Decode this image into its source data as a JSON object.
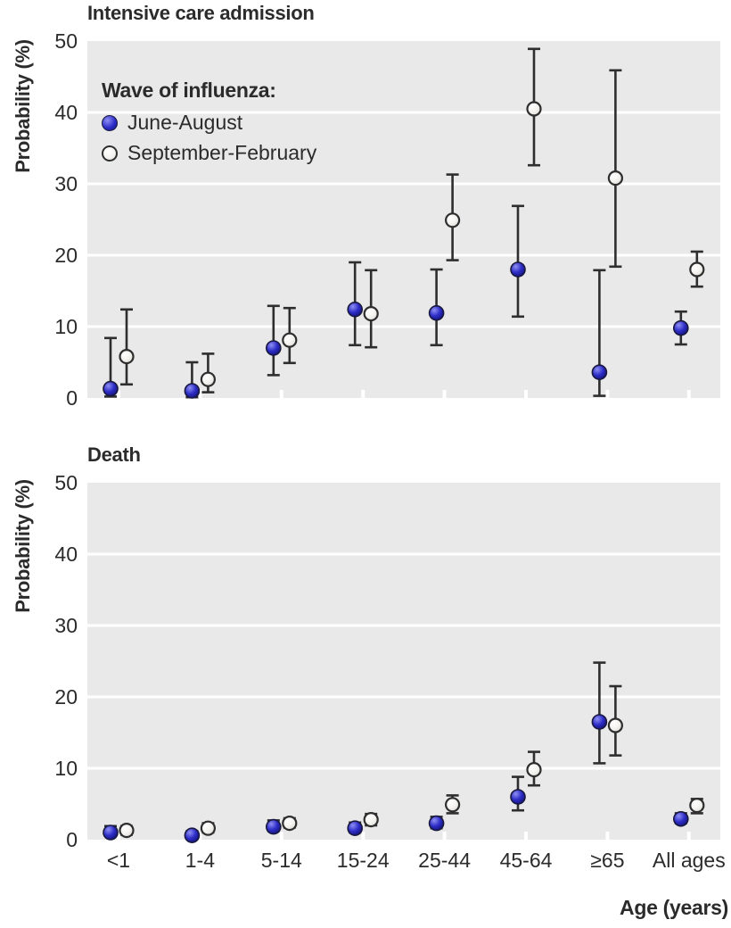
{
  "figure": {
    "y_axis_label": "Probability (%)",
    "x_axis_label": "Age (years)"
  },
  "legend": {
    "title": "Wave of influenza:",
    "items": [
      {
        "label": "June-August",
        "marker": "filled-blue-circle",
        "color": "#2d2dc8"
      },
      {
        "label": "September-February",
        "marker": "open-white-circle",
        "color": "#f3f2ef"
      }
    ]
  },
  "colors": {
    "panel_background": "#e9e9e9",
    "gridline": "#ffffff",
    "error_bar": "#2e2e2e",
    "text": "#2b2b2b",
    "blue_marker": "#2d2dc8",
    "white_marker": "#f3f2ef"
  },
  "chart_data": [
    {
      "type": "scatter",
      "title": "Intensive care admission",
      "ylabel": "Probability (%)",
      "xlabel": "Age (years)",
      "ylim": [
        0,
        50
      ],
      "yticks": [
        0,
        10,
        20,
        30,
        40,
        50
      ],
      "grid": "horizontal-white",
      "legend_position": "upper-left-inside",
      "categories": [
        "<1",
        "1-4",
        "5-14",
        "15-24",
        "25-44",
        "45-64",
        "≥65",
        "All ages"
      ],
      "series": [
        {
          "name": "June-August",
          "values": [
            1.3,
            1.0,
            7.0,
            12.4,
            11.9,
            18.0,
            3.6,
            9.8
          ],
          "ci_lower": [
            0.2,
            0.1,
            3.2,
            7.4,
            7.4,
            11.4,
            0.3,
            7.5
          ],
          "ci_upper": [
            8.4,
            5.0,
            12.9,
            19.0,
            18.0,
            26.9,
            17.9,
            12.1
          ]
        },
        {
          "name": "September-February",
          "values": [
            5.8,
            2.6,
            8.1,
            11.8,
            24.9,
            40.5,
            30.8,
            18.0
          ],
          "ci_lower": [
            1.9,
            0.8,
            4.9,
            7.1,
            19.3,
            32.6,
            18.4,
            15.6
          ],
          "ci_upper": [
            12.4,
            6.2,
            12.6,
            17.9,
            31.3,
            48.9,
            45.9,
            20.5
          ]
        }
      ]
    },
    {
      "type": "scatter",
      "title": "Death",
      "ylabel": "Probability (%)",
      "xlabel": "Age (years)",
      "ylim": [
        0,
        50
      ],
      "yticks": [
        0,
        10,
        20,
        30,
        40,
        50
      ],
      "grid": "horizontal-white",
      "categories": [
        "<1",
        "1-4",
        "5-14",
        "15-24",
        "25-44",
        "45-64",
        "≥65",
        "All ages"
      ],
      "series": [
        {
          "name": "June-August",
          "values": [
            1.0,
            0.6,
            1.8,
            1.6,
            2.3,
            6.0,
            16.5,
            2.9
          ],
          "ci_lower": [
            0.5,
            0.2,
            1.2,
            1.0,
            1.6,
            4.1,
            10.7,
            2.3
          ],
          "ci_upper": [
            1.9,
            1.2,
            2.7,
            2.4,
            3.2,
            8.8,
            24.8,
            3.7
          ]
        },
        {
          "name": "September-February",
          "values": [
            1.3,
            1.6,
            2.3,
            2.8,
            4.9,
            9.8,
            16.0,
            4.8
          ],
          "ci_lower": [
            0.7,
            1.0,
            1.7,
            2.0,
            3.7,
            7.6,
            11.8,
            3.7
          ],
          "ci_upper": [
            1.9,
            2.3,
            3.0,
            3.6,
            6.2,
            12.3,
            21.5,
            5.7
          ]
        }
      ]
    }
  ]
}
